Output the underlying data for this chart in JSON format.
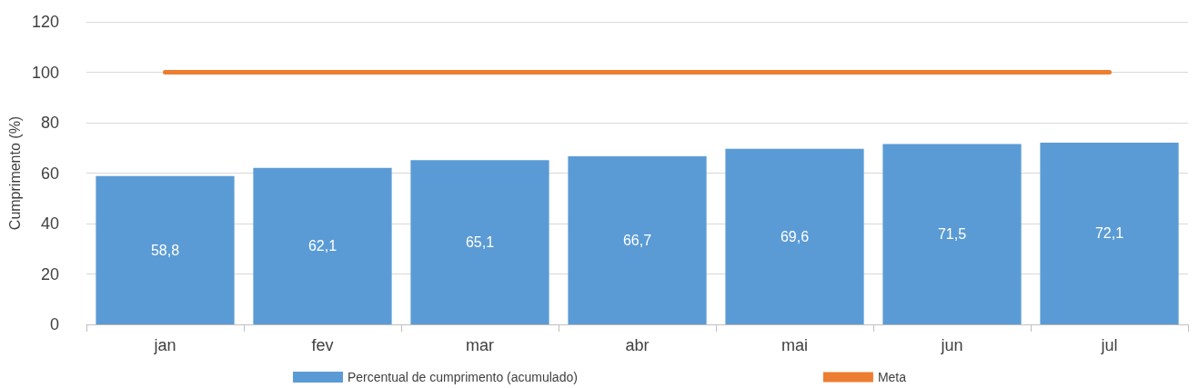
{
  "chart_data": {
    "type": "bar",
    "ylabel": "Cumprimento (%)",
    "categories": [
      "jan",
      "fev",
      "mar",
      "abr",
      "mai",
      "jun",
      "jul"
    ],
    "series": [
      {
        "name": "Percentual de cumprimento (acumulado)",
        "color": "#5b9bd5",
        "values": [
          58.8,
          62.1,
          65.1,
          66.7,
          69.6,
          71.5,
          72.1
        ],
        "value_labels": [
          "58,8",
          "62,1",
          "65,1",
          "66,7",
          "69,6",
          "71,5",
          "72,1"
        ]
      },
      {
        "name": "Meta",
        "type": "line",
        "color": "#ed7d31",
        "values": [
          100,
          100,
          100,
          100,
          100,
          100,
          100
        ],
        "marker": "none",
        "line_style": "solid"
      }
    ],
    "ylim": [
      0,
      120
    ],
    "yticks": [
      0,
      20,
      40,
      60,
      80,
      100,
      120
    ],
    "grid": "y",
    "legend": "bottom"
  }
}
